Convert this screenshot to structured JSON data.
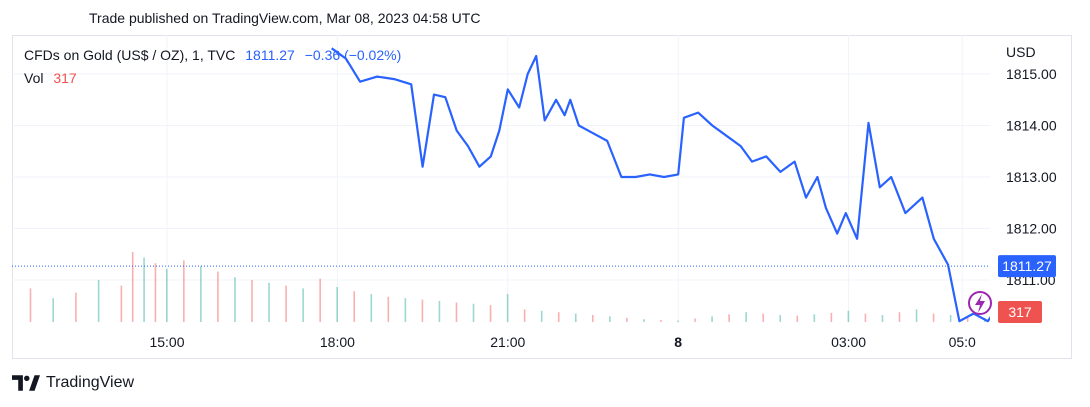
{
  "header": {
    "published": "Trade published on TradingView.com, Mar 08, 2023 04:58 UTC"
  },
  "legend": {
    "symbol": "CFDs on Gold (US$ / OZ), 1, TVC",
    "last": "1811.27",
    "change": "−0.36 (−0.02%)",
    "vol_label": "Vol",
    "vol_value": "317"
  },
  "axis": {
    "currency": "USD",
    "price_ticks": [
      "1815.00",
      "1814.00",
      "1813.00",
      "1812.00",
      "1811.00"
    ],
    "time_ticks": [
      "15:00",
      "18:00",
      "21:00",
      "8",
      "03:00",
      "05:0"
    ]
  },
  "price_tag": {
    "value": "1811.27",
    "color": "#2962ff"
  },
  "volume_tag": {
    "value": "317",
    "color": "#ef5350"
  },
  "brand": {
    "name": "TradingView"
  },
  "colors": {
    "line": "#2962ff",
    "vol_up": "#26a69a",
    "vol_down": "#ef5350",
    "lightning": "#9c27b0"
  },
  "chart_data": {
    "type": "line",
    "title": "CFDs on Gold (US$ / OZ), 1, TVC",
    "x": [
      "15:00",
      "18:00",
      "21:00",
      "8",
      "03:00",
      "05:0"
    ],
    "ylim": [
      1810.25,
      1815.3
    ],
    "price_series": [
      [
        17.9,
        1815.5
      ],
      [
        18.15,
        1815.3
      ],
      [
        18.4,
        1814.85
      ],
      [
        18.7,
        1814.95
      ],
      [
        19.0,
        1814.9
      ],
      [
        19.3,
        1814.8
      ],
      [
        19.5,
        1813.2
      ],
      [
        19.7,
        1814.6
      ],
      [
        19.9,
        1814.55
      ],
      [
        20.1,
        1813.9
      ],
      [
        20.3,
        1813.6
      ],
      [
        20.5,
        1813.2
      ],
      [
        20.7,
        1813.4
      ],
      [
        20.85,
        1813.9
      ],
      [
        21.0,
        1814.7
      ],
      [
        21.2,
        1814.35
      ],
      [
        21.35,
        1815.0
      ],
      [
        21.5,
        1815.35
      ],
      [
        21.65,
        1814.1
      ],
      [
        21.85,
        1814.5
      ],
      [
        22.0,
        1814.2
      ],
      [
        22.1,
        1814.5
      ],
      [
        22.25,
        1814.0
      ],
      [
        22.5,
        1813.85
      ],
      [
        22.75,
        1813.7
      ],
      [
        23.0,
        1813.0
      ],
      [
        23.25,
        1813.0
      ],
      [
        23.5,
        1813.05
      ],
      [
        23.75,
        1813.0
      ],
      [
        24.0,
        1813.05
      ],
      [
        24.1,
        1814.15
      ],
      [
        24.35,
        1814.25
      ],
      [
        24.6,
        1814.0
      ],
      [
        24.85,
        1813.8
      ],
      [
        25.1,
        1813.6
      ],
      [
        25.3,
        1813.3
      ],
      [
        25.55,
        1813.4
      ],
      [
        25.8,
        1813.1
      ],
      [
        26.05,
        1813.3
      ],
      [
        26.25,
        1812.6
      ],
      [
        26.45,
        1813.0
      ],
      [
        26.6,
        1812.4
      ],
      [
        26.8,
        1811.9
      ],
      [
        26.95,
        1812.3
      ],
      [
        27.15,
        1811.8
      ],
      [
        27.35,
        1814.05
      ],
      [
        27.55,
        1812.8
      ],
      [
        27.75,
        1813.0
      ],
      [
        28.0,
        1812.3
      ],
      [
        28.3,
        1812.6
      ],
      [
        28.5,
        1811.8
      ],
      [
        28.75,
        1811.3
      ],
      [
        28.95,
        1810.2
      ],
      [
        29.2,
        1810.35
      ],
      [
        29.45,
        1810.2
      ],
      [
        29.7,
        1810.6
      ],
      [
        29.9,
        1810.55
      ],
      [
        30.1,
        1810.8
      ],
      [
        30.3,
        1810.3
      ],
      [
        30.5,
        1810.85
      ],
      [
        30.65,
        1811.0
      ],
      [
        30.8,
        1811.5
      ],
      [
        30.95,
        1811.3
      ]
    ],
    "volume_series": [
      [
        9.05,
        120,
        "up"
      ],
      [
        9.4,
        150,
        "down"
      ],
      [
        9.8,
        110,
        "up"
      ],
      [
        10.2,
        180,
        "down"
      ],
      [
        10.6,
        130,
        "up"
      ],
      [
        11.0,
        200,
        "down"
      ],
      [
        11.4,
        160,
        "up"
      ],
      [
        11.8,
        220,
        "down"
      ],
      [
        12.2,
        190,
        "up"
      ],
      [
        12.6,
        240,
        "down"
      ],
      [
        13.0,
        170,
        "up"
      ],
      [
        13.4,
        210,
        "down"
      ],
      [
        13.8,
        300,
        "up"
      ],
      [
        14.2,
        260,
        "down"
      ],
      [
        14.4,
        500,
        "down"
      ],
      [
        14.6,
        460,
        "up"
      ],
      [
        14.8,
        420,
        "down"
      ],
      [
        15.0,
        380,
        "up"
      ],
      [
        15.3,
        440,
        "down"
      ],
      [
        15.6,
        400,
        "up"
      ],
      [
        15.9,
        360,
        "down"
      ],
      [
        16.2,
        320,
        "up"
      ],
      [
        16.5,
        300,
        "down"
      ],
      [
        16.8,
        280,
        "up"
      ],
      [
        17.1,
        260,
        "down"
      ],
      [
        17.4,
        240,
        "up"
      ],
      [
        17.7,
        310,
        "down"
      ],
      [
        18.0,
        250,
        "up"
      ],
      [
        18.3,
        220,
        "down"
      ],
      [
        18.6,
        200,
        "up"
      ],
      [
        18.9,
        180,
        "down"
      ],
      [
        19.2,
        170,
        "up"
      ],
      [
        19.5,
        160,
        "down"
      ],
      [
        19.8,
        150,
        "up"
      ],
      [
        20.1,
        140,
        "down"
      ],
      [
        20.4,
        130,
        "up"
      ],
      [
        20.7,
        120,
        "down"
      ],
      [
        21.0,
        200,
        "up"
      ],
      [
        21.3,
        90,
        "down"
      ],
      [
        21.6,
        80,
        "up"
      ],
      [
        21.9,
        70,
        "down"
      ],
      [
        22.2,
        60,
        "up"
      ],
      [
        22.5,
        50,
        "down"
      ],
      [
        22.8,
        40,
        "up"
      ],
      [
        23.1,
        30,
        "down"
      ],
      [
        23.4,
        20,
        "up"
      ],
      [
        23.7,
        15,
        "down"
      ],
      [
        24.0,
        10,
        "up"
      ],
      [
        24.3,
        25,
        "down"
      ],
      [
        24.6,
        40,
        "up"
      ],
      [
        24.9,
        55,
        "down"
      ],
      [
        25.2,
        70,
        "up"
      ],
      [
        25.5,
        60,
        "down"
      ],
      [
        25.8,
        50,
        "up"
      ],
      [
        26.1,
        45,
        "down"
      ],
      [
        26.4,
        55,
        "up"
      ],
      [
        26.7,
        65,
        "down"
      ],
      [
        27.0,
        80,
        "up"
      ],
      [
        27.3,
        60,
        "down"
      ],
      [
        27.6,
        50,
        "up"
      ],
      [
        27.9,
        70,
        "down"
      ],
      [
        28.2,
        90,
        "up"
      ],
      [
        28.5,
        60,
        "down"
      ],
      [
        28.8,
        50,
        "up"
      ],
      [
        29.1,
        40,
        "down"
      ],
      [
        29.4,
        30,
        "up"
      ],
      [
        29.7,
        45,
        "down"
      ],
      [
        30.0,
        60,
        "up"
      ],
      [
        30.3,
        55,
        "down"
      ],
      [
        30.6,
        70,
        "up"
      ],
      [
        30.9,
        85,
        "down"
      ]
    ]
  }
}
